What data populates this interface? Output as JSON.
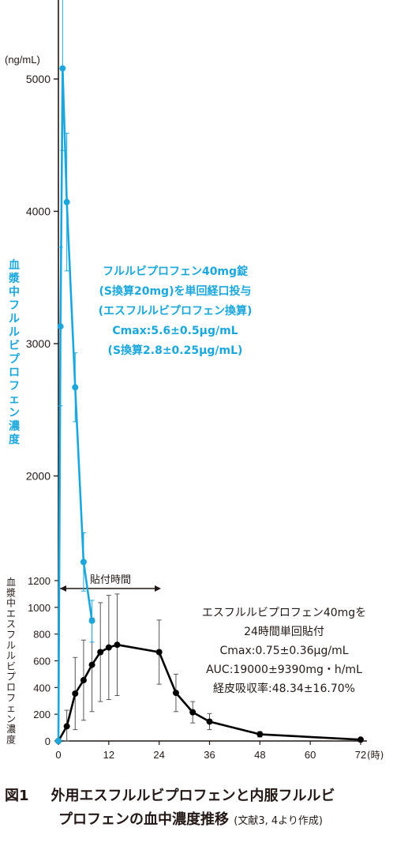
{
  "chart_data": {
    "type": "line",
    "upper_panel": {
      "unit_label": "(ng/mL)",
      "ylabel": "血漿中フルルビプロフェン濃度",
      "ylim": [
        1200,
        5600
      ],
      "yticks": [
        "5000",
        "4000",
        "3000",
        "2000"
      ],
      "series": [
        {
          "name": "フルルビプロフェン40mg錠",
          "color": "#1ba7dc",
          "x": [
            0,
            0.5,
            1,
            2,
            4,
            6,
            8
          ],
          "y": [
            0,
            3130,
            5080,
            4070,
            2670,
            1350,
            900
          ],
          "err": [
            0,
            600,
            620,
            520,
            260,
            220,
            160
          ]
        }
      ],
      "annotation": [
        "フルルビプロフェン40mg錠",
        "(S換算20mg)を単回経口投与",
        "(エスフルルビプロフェン換算)",
        "Cmax:5.6±0.5μg/mL",
        "(S換算2.8±0.25μg/mL)"
      ]
    },
    "lower_panel": {
      "ylabel": "血漿中エスフルルビプロフェン濃度",
      "ylim": [
        0,
        1200
      ],
      "yticks": [
        "0",
        "200",
        "400",
        "600",
        "800",
        "1000",
        "1200"
      ],
      "xticks": [
        "0",
        "12",
        "24",
        "36",
        "48",
        "60",
        "72"
      ],
      "xunit": "(時)",
      "xlim": [
        0,
        72
      ],
      "series": [
        {
          "name": "エスフルルビプロフェン40mg",
          "color": "#000000",
          "x": [
            0,
            2,
            4,
            6,
            8,
            10,
            12,
            14,
            24,
            28,
            32,
            36,
            48,
            72
          ],
          "y": [
            0,
            110,
            355,
            455,
            570,
            665,
            700,
            720,
            665,
            360,
            215,
            145,
            50,
            10
          ],
          "err": [
            0,
            120,
            270,
            300,
            350,
            370,
            390,
            380,
            240,
            140,
            80,
            60,
            20,
            5
          ]
        }
      ],
      "application_label": "貼付時間",
      "application_range": [
        0,
        24
      ],
      "annotation": [
        "エスフルルビプロフェン40mgを",
        "24時間単回貼付",
        "Cmax:0.75±0.36μg/mL",
        "AUC:19000±9390mg・h/mL",
        "経皮吸収率:48.34±16.70%"
      ]
    },
    "grid": false
  },
  "caption": {
    "label": "図1",
    "title_line1": "外用エスフルルビプロフェンと内服フルルビ",
    "title_line2": "プロフェンの血中濃度推移",
    "source": "(文献3, 4より作成)"
  }
}
